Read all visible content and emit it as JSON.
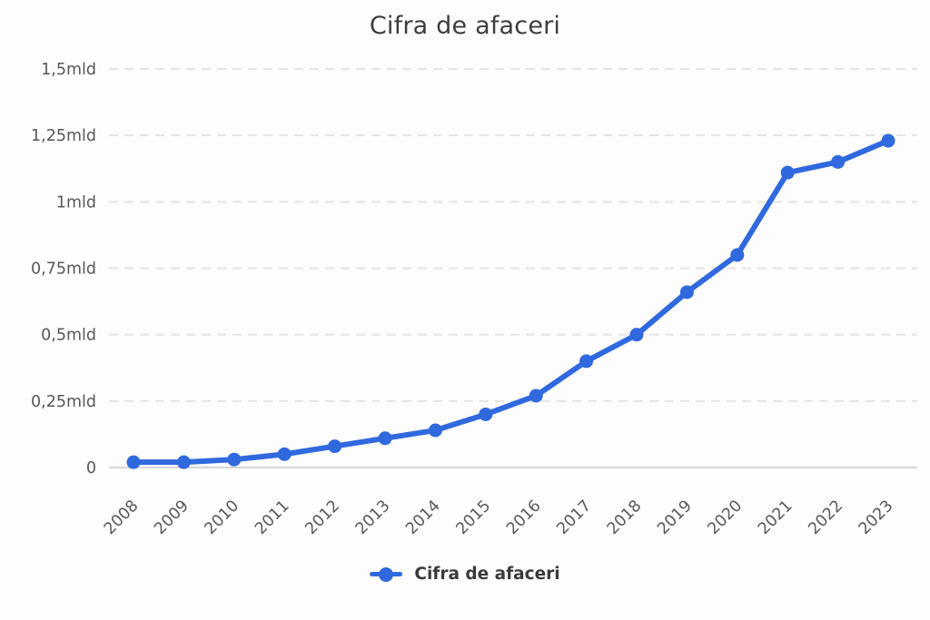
{
  "title": "Cifra de afaceri",
  "legend": {
    "label": "Cifra de afaceri",
    "marker_color": "#3069de"
  },
  "style": {
    "background": "#fdfdfd",
    "line_color": "#3069de",
    "grid_color": "#e4e4e4",
    "axis_line_color": "#d7d7d7",
    "tick_label_color": "#585858",
    "title_color": "#3d3d3d"
  },
  "chart_data": {
    "type": "line",
    "title": "Cifra de afaceri",
    "categories": [
      "2008",
      "2009",
      "2010",
      "2011",
      "2012",
      "2013",
      "2014",
      "2015",
      "2016",
      "2017",
      "2018",
      "2019",
      "2020",
      "2021",
      "2022",
      "2023"
    ],
    "series": [
      {
        "name": "Cifra de afaceri",
        "color": "#3069de",
        "values": [
          0.02,
          0.02,
          0.03,
          0.05,
          0.08,
          0.11,
          0.14,
          0.2,
          0.27,
          0.4,
          0.5,
          0.66,
          0.8,
          1.11,
          1.15,
          1.23
        ]
      }
    ],
    "y_unit": "mld",
    "ylim": [
      0,
      1.5
    ],
    "y_ticks": [
      {
        "value": 0,
        "label": "0"
      },
      {
        "value": 0.25,
        "label": "0,25mld"
      },
      {
        "value": 0.5,
        "label": "0,5mld"
      },
      {
        "value": 0.75,
        "label": "0,75mld"
      },
      {
        "value": 1,
        "label": "1mld"
      },
      {
        "value": 1.25,
        "label": "1,25mld"
      },
      {
        "value": 1.5,
        "label": "1,5mld"
      }
    ],
    "grid": "horizontal-dashed",
    "legend_position": "bottom",
    "x_label_rotation": -45
  }
}
